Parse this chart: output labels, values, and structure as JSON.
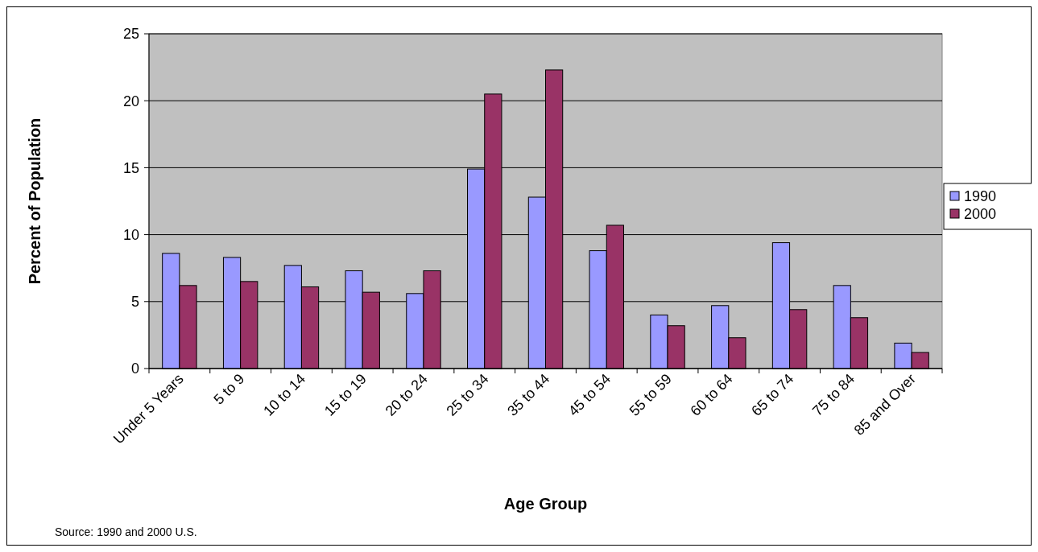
{
  "chart_data": {
    "type": "bar",
    "xlabel": "Age Group",
    "ylabel": "Percent of Population",
    "categories": [
      "Under 5 Years",
      "5 to 9",
      "10 to 14",
      "15 to 19",
      "20 to 24",
      "25 to 34",
      "35 to 44",
      "45 to 54",
      "55 to 59",
      "60 to 64",
      "65 to 74",
      "75 to 84",
      "85 and Over"
    ],
    "series": [
      {
        "name": "1990",
        "color": "#9999ff",
        "values": [
          8.6,
          8.3,
          7.7,
          7.3,
          5.6,
          14.9,
          12.8,
          8.8,
          4.0,
          4.7,
          9.4,
          6.2,
          1.9
        ]
      },
      {
        "name": "2000",
        "color": "#993366",
        "values": [
          6.2,
          6.5,
          6.1,
          5.7,
          7.3,
          20.5,
          22.3,
          10.7,
          3.2,
          2.3,
          4.4,
          3.8,
          1.2
        ]
      }
    ],
    "ylim": [
      0,
      25
    ],
    "yticks": [
      0,
      5,
      10,
      15,
      20,
      25
    ],
    "grid": "y",
    "legend": "right",
    "annotations": [
      "Source: 1990 and 2000 U.S."
    ]
  }
}
